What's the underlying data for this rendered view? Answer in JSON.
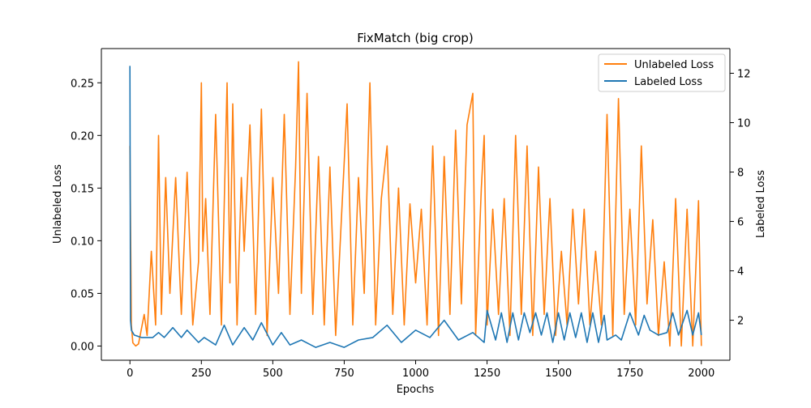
{
  "chart_data": {
    "type": "line",
    "title": "FixMatch (big crop)",
    "xlabel": "Epochs",
    "ylabel_left": "Unlabeled Loss",
    "ylabel_right": "Labeled Loss",
    "xlim": [
      -100,
      2100
    ],
    "ylim_left": [
      -0.0135,
      0.2825
    ],
    "ylim_right": [
      0.38,
      13.0
    ],
    "x_ticks": [
      0,
      250,
      500,
      750,
      1000,
      1250,
      1500,
      1750,
      2000
    ],
    "y_left_ticks": [
      0.0,
      0.05,
      0.1,
      0.15,
      0.2,
      0.25
    ],
    "y_left_tick_labels": [
      "0.00",
      "0.05",
      "0.10",
      "0.15",
      "0.20",
      "0.25"
    ],
    "y_right_ticks": [
      2,
      4,
      6,
      8,
      10,
      12
    ],
    "grid": false,
    "legend_position": "top-right",
    "series": [
      {
        "name": "Unlabeled Loss",
        "axis": "left",
        "color": "#ff7f0e",
        "x": [
          0,
          5,
          10,
          20,
          30,
          50,
          60,
          75,
          90,
          100,
          110,
          125,
          140,
          160,
          180,
          200,
          220,
          240,
          250,
          255,
          265,
          280,
          300,
          320,
          340,
          350,
          360,
          375,
          390,
          400,
          420,
          440,
          460,
          480,
          500,
          520,
          540,
          560,
          580,
          590,
          600,
          620,
          640,
          660,
          680,
          700,
          720,
          740,
          760,
          780,
          800,
          820,
          840,
          860,
          880,
          900,
          920,
          940,
          960,
          980,
          1000,
          1020,
          1040,
          1060,
          1080,
          1100,
          1120,
          1140,
          1160,
          1180,
          1200,
          1210,
          1230,
          1240,
          1250,
          1270,
          1290,
          1310,
          1330,
          1350,
          1370,
          1390,
          1410,
          1430,
          1450,
          1470,
          1490,
          1510,
          1530,
          1550,
          1570,
          1590,
          1610,
          1630,
          1650,
          1670,
          1690,
          1710,
          1730,
          1750,
          1770,
          1790,
          1810,
          1830,
          1850,
          1870,
          1890,
          1910,
          1930,
          1950,
          1970,
          1990,
          2000
        ],
        "values": [
          0.19,
          0.02,
          0.003,
          0.0,
          0.002,
          0.03,
          0.01,
          0.09,
          0.02,
          0.2,
          0.03,
          0.16,
          0.05,
          0.16,
          0.03,
          0.165,
          0.02,
          0.08,
          0.25,
          0.09,
          0.14,
          0.03,
          0.22,
          0.02,
          0.25,
          0.06,
          0.23,
          0.02,
          0.16,
          0.09,
          0.21,
          0.03,
          0.225,
          0.01,
          0.16,
          0.05,
          0.22,
          0.03,
          0.17,
          0.27,
          0.05,
          0.24,
          0.03,
          0.18,
          0.02,
          0.17,
          0.01,
          0.12,
          0.23,
          0.02,
          0.16,
          0.05,
          0.25,
          0.02,
          0.14,
          0.19,
          0.03,
          0.15,
          0.02,
          0.135,
          0.06,
          0.13,
          0.02,
          0.19,
          0.01,
          0.18,
          0.03,
          0.205,
          0.04,
          0.21,
          0.24,
          0.01,
          0.15,
          0.2,
          0.02,
          0.13,
          0.03,
          0.14,
          0.01,
          0.2,
          0.03,
          0.19,
          0.01,
          0.17,
          0.03,
          0.14,
          0.01,
          0.09,
          0.02,
          0.13,
          0.04,
          0.13,
          0.02,
          0.09,
          0.02,
          0.22,
          0.01,
          0.235,
          0.03,
          0.13,
          0.02,
          0.19,
          0.04,
          0.12,
          0.01,
          0.08,
          0.0,
          0.14,
          0.0,
          0.13,
          0.0,
          0.138,
          0.0
        ]
      },
      {
        "name": "Labeled Loss",
        "axis": "right",
        "color": "#1f77b4",
        "x": [
          0,
          2,
          5,
          15,
          40,
          80,
          100,
          120,
          150,
          180,
          200,
          240,
          260,
          300,
          330,
          360,
          400,
          430,
          460,
          500,
          530,
          560,
          600,
          650,
          700,
          750,
          800,
          850,
          900,
          950,
          1000,
          1050,
          1100,
          1150,
          1200,
          1240,
          1250,
          1280,
          1300,
          1320,
          1340,
          1360,
          1380,
          1400,
          1420,
          1440,
          1460,
          1480,
          1500,
          1520,
          1540,
          1560,
          1580,
          1600,
          1620,
          1640,
          1660,
          1670,
          1700,
          1720,
          1750,
          1780,
          1800,
          1820,
          1850,
          1880,
          1900,
          1920,
          1950,
          1970,
          1990,
          2000
        ],
        "values": [
          12.3,
          2.0,
          1.6,
          1.4,
          1.3,
          1.3,
          1.5,
          1.3,
          1.7,
          1.3,
          1.6,
          1.1,
          1.3,
          1.0,
          1.8,
          1.0,
          1.7,
          1.2,
          1.9,
          1.0,
          1.5,
          1.0,
          1.2,
          0.9,
          1.1,
          0.9,
          1.2,
          1.3,
          1.8,
          1.1,
          1.6,
          1.3,
          2.0,
          1.2,
          1.5,
          1.1,
          2.4,
          1.2,
          2.3,
          1.1,
          2.3,
          1.2,
          2.3,
          1.5,
          2.3,
          1.4,
          2.3,
          1.1,
          2.3,
          1.2,
          2.3,
          1.3,
          2.3,
          1.1,
          2.3,
          1.1,
          2.2,
          1.2,
          1.4,
          1.2,
          2.3,
          1.4,
          2.2,
          1.6,
          1.4,
          1.5,
          2.3,
          1.4,
          2.4,
          1.4,
          2.3,
          1.4
        ]
      }
    ]
  }
}
